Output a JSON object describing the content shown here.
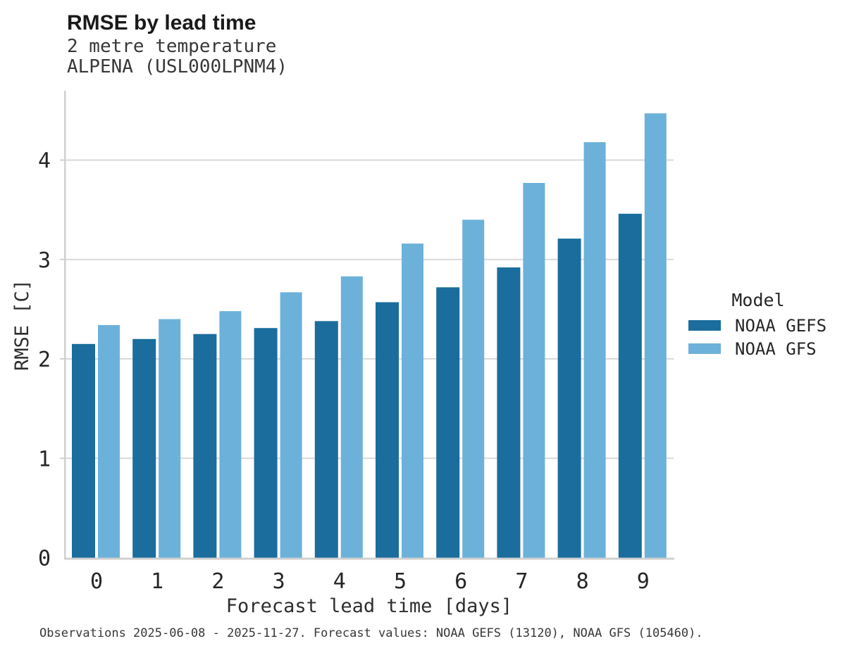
{
  "header": {
    "title": "RMSE by lead time",
    "subtitle_line1": "2 metre temperature",
    "subtitle_line2": "ALPENA (USL000LPNM4)"
  },
  "chart_data": {
    "type": "bar",
    "title": "RMSE by lead time",
    "subtitle": "2 metre temperature ALPENA (USL000LPNM4)",
    "xlabel": "Forecast lead time [days]",
    "ylabel": "RMSE [C]",
    "categories": [
      "0",
      "1",
      "2",
      "3",
      "4",
      "5",
      "6",
      "7",
      "8",
      "9"
    ],
    "series": [
      {
        "name": "NOAA GEFS",
        "color": "#1a6d9c",
        "values": [
          2.15,
          2.2,
          2.25,
          2.31,
          2.38,
          2.57,
          2.72,
          2.92,
          3.21,
          3.46
        ]
      },
      {
        "name": "NOAA GFS",
        "color": "#6cb1da",
        "values": [
          2.34,
          2.4,
          2.48,
          2.67,
          2.83,
          3.16,
          3.4,
          3.77,
          4.18,
          4.47
        ]
      }
    ],
    "yticks": [
      0,
      1,
      2,
      3,
      4
    ],
    "ylim": [
      0,
      4.7
    ],
    "grid": "horizontal",
    "legend_position": "right"
  },
  "legend": {
    "title": "Model",
    "entries": [
      {
        "label": "NOAA GEFS",
        "color": "#1a6d9c"
      },
      {
        "label": "NOAA GFS",
        "color": "#6cb1da"
      }
    ]
  },
  "footer": {
    "text": "Observations 2025-06-08 - 2025-11-27. Forecast values: NOAA GEFS (13120), NOAA GFS (105460)."
  },
  "colors": {
    "gefs_bar": "#1a6d9c",
    "gfs_bar": "#6cb1da",
    "gridline": "#d9d9d9",
    "axis_spine": "#d0d0d0",
    "text_primary": "#262626",
    "text_secondary": "#383838",
    "background": "#ffffff"
  }
}
